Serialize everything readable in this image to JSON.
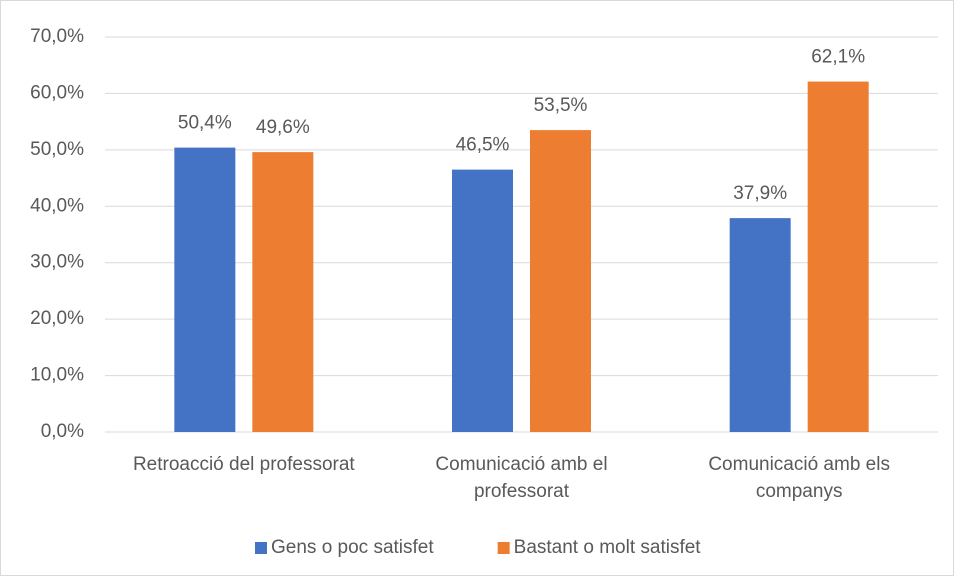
{
  "chart_data": {
    "type": "bar",
    "categories": [
      "Retroacció del professorat",
      "Comunicació amb el professorat",
      "Comunicació amb els companys"
    ],
    "series": [
      {
        "name": "Gens o poc satisfet",
        "color": "#4472c4",
        "values": [
          50.4,
          46.5,
          37.9
        ],
        "value_labels": [
          "50,4%",
          "46,5%",
          "37,9%"
        ]
      },
      {
        "name": "Bastant o molt satisfet",
        "color": "#ed7d31",
        "values": [
          49.6,
          53.5,
          62.1
        ],
        "value_labels": [
          "49,6%",
          "53,5%",
          "62,1%"
        ]
      }
    ],
    "ylim": [
      0,
      70
    ],
    "yticks": [
      {
        "value": 0,
        "label": "0,0%"
      },
      {
        "value": 10,
        "label": "10,0%"
      },
      {
        "value": 20,
        "label": "20,0%"
      },
      {
        "value": 30,
        "label": "30,0%"
      },
      {
        "value": 40,
        "label": "40,0%"
      },
      {
        "value": 50,
        "label": "50,0%"
      },
      {
        "value": 60,
        "label": "60,0%"
      },
      {
        "value": 70,
        "label": "70,0%"
      }
    ],
    "grid": true,
    "legend": "bottom"
  }
}
